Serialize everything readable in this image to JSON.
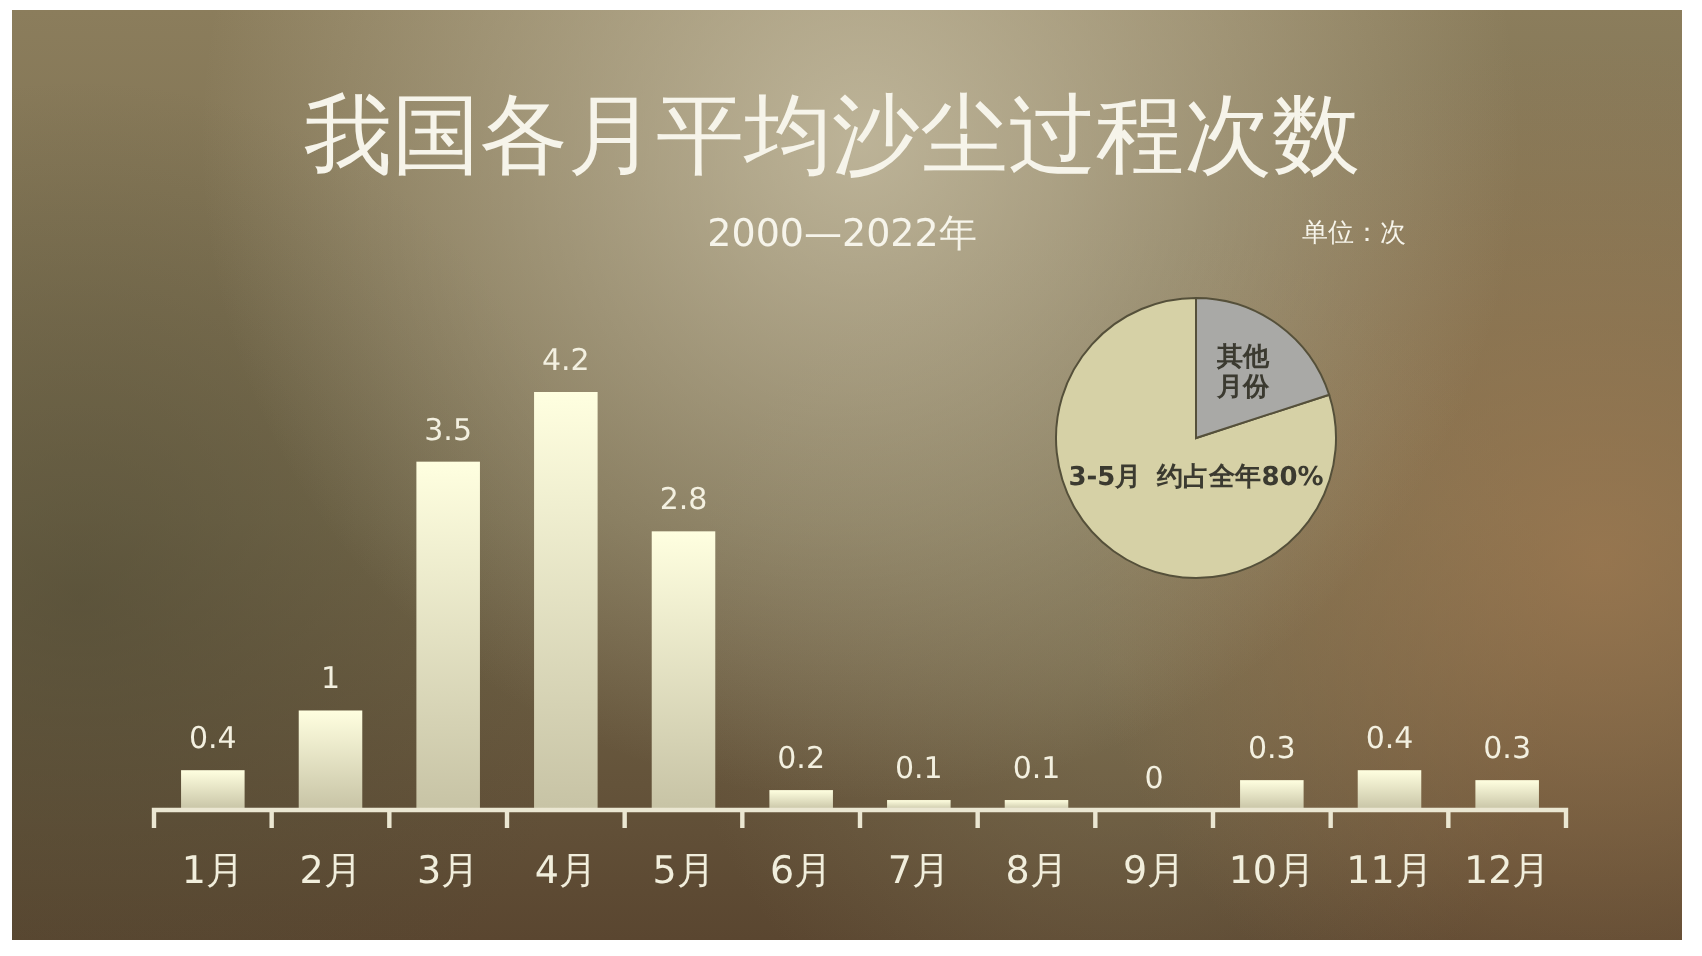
{
  "chart_data": [
    {
      "type": "bar",
      "title": "我国各月平均沙尘过程次数",
      "subtitle": "2000—2022年",
      "annotations": [
        "单位：次"
      ],
      "categories": [
        "1月",
        "2月",
        "3月",
        "4月",
        "5月",
        "6月",
        "7月",
        "8月",
        "9月",
        "10月",
        "11月",
        "12月"
      ],
      "values": [
        0.4,
        1,
        3.5,
        4.2,
        2.8,
        0.2,
        0.1,
        0.1,
        0,
        0.3,
        0.4,
        0.3
      ],
      "color": "#e2ddbb",
      "data_labels": true,
      "tick_labels": "x"
    },
    {
      "type": "pie",
      "categories": [
        "3-5月",
        "其他月份"
      ],
      "values": [
        80,
        20
      ],
      "colors": [
        "#d6d1a6",
        "#a9a9a6"
      ],
      "value_labels": [
        "约占全年80%",
        null
      ]
    }
  ]
}
